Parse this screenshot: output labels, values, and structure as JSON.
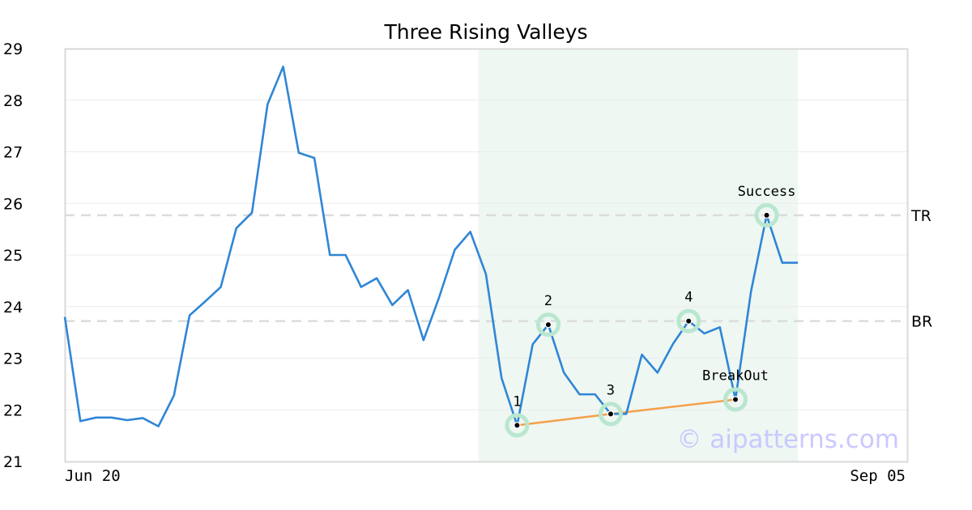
{
  "chart_data": {
    "type": "line",
    "title": "Three Rising Valleys",
    "xlabel": "",
    "ylabel": "",
    "ylim": [
      21,
      29
    ],
    "yticks": [
      "21",
      "22",
      "23",
      "24",
      "25",
      "26",
      "27",
      "28",
      "29"
    ],
    "xtick_labels": [
      "Jun 20",
      "Sep 05"
    ],
    "grid": "horizontal",
    "series": [
      {
        "color": "#2f86d6",
        "values": [
          23.8,
          21.78,
          21.85,
          21.85,
          21.8,
          21.84,
          21.68,
          22.28,
          23.83,
          24.1,
          24.38,
          25.52,
          25.82,
          27.92,
          28.65,
          26.98,
          26.88,
          25,
          25,
          24.38,
          24.55,
          24.03,
          24.32,
          23.35,
          24.18,
          25.1,
          25.45,
          24.63,
          22.62,
          21.7,
          23.27,
          23.65,
          22.72,
          22.3,
          22.3,
          21.92,
          21.92,
          23.07,
          22.72,
          23.28,
          23.72,
          23.48,
          23.6,
          22.2,
          24.3,
          25.77,
          24.85,
          24.85
        ]
      }
    ],
    "highlight_range": [
      27,
      47
    ],
    "levels": [
      {
        "label": "TR",
        "value": 25.77
      },
      {
        "label": "BR",
        "value": 23.72
      }
    ],
    "trendline": {
      "color": "#f5a04a",
      "points": [
        [
          29,
          21.7
        ],
        [
          35,
          21.92
        ],
        [
          43,
          22.2
        ]
      ]
    },
    "pattern_points": [
      {
        "label": "1",
        "index": 29,
        "value": 21.7
      },
      {
        "label": "2",
        "index": 31,
        "value": 23.65
      },
      {
        "label": "3",
        "index": 35,
        "value": 21.92
      },
      {
        "label": "4",
        "index": 40,
        "value": 23.72
      },
      {
        "label": "BreakOut",
        "index": 43,
        "value": 22.2
      },
      {
        "label": "Success",
        "index": 45,
        "value": 25.77
      }
    ],
    "watermark": "© aipatterns.com"
  }
}
